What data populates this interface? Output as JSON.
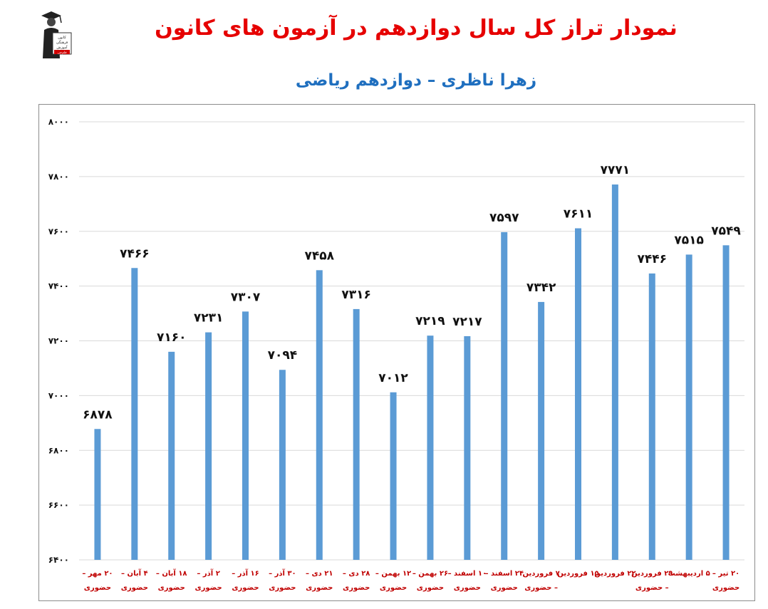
{
  "header": {
    "title": "نمودار تراز کل سال دوازدهم در آزمون های کانون",
    "subtitle": "زهرا ناظری – دوازدهم ریاضی"
  },
  "logo": {
    "icon": "graduate-figure-icon",
    "text_lines": [
      "کانون",
      "فرهنگی",
      "آموزش",
      "قلم‌چی"
    ]
  },
  "colors": {
    "title": "#e60000",
    "subtitle": "#1f6fbf",
    "bar": "#5b9bd5",
    "category_label": "#c00000",
    "grid": "#d9d9d9"
  },
  "chart_data": {
    "type": "bar",
    "categories": [
      [
        "۲۰ مهر –",
        "حضوری"
      ],
      [
        "۴ آبان –",
        "حضوری"
      ],
      [
        "۱۸ آبان –",
        "حضوری"
      ],
      [
        "۲ آذر –",
        "حضوری"
      ],
      [
        "۱۶ آذر –",
        "حضوری"
      ],
      [
        "۳۰ آذر –",
        "حضوری"
      ],
      [
        "۲۱ دی –",
        "حضوری"
      ],
      [
        "۲۸ دی –",
        "حضوری"
      ],
      [
        "۱۲ بهمن –",
        "حضوری"
      ],
      [
        "۲۶ بهمن –",
        "حضوری"
      ],
      [
        "۱۰ اسفند –",
        "حضوری"
      ],
      [
        "۲۴ اسفند –",
        "حضوری"
      ],
      [
        "۷ فروردین",
        "– حضوری"
      ],
      [
        "۱۵ فروردین",
        ""
      ],
      [
        "۲۲ فروردین",
        ""
      ],
      [
        "۲۹ فروردین",
        "– حضوری"
      ],
      [
        "۵ اردیبهشت",
        ""
      ],
      [
        "۲۰ تیر –",
        "حضوری"
      ]
    ],
    "values": [
      6878,
      7466,
      7160,
      7231,
      7307,
      7094,
      7458,
      7316,
      7012,
      7219,
      7217,
      7597,
      7342,
      7611,
      7771,
      7446,
      7515,
      7549
    ],
    "value_labels": [
      "۶۸۷۸",
      "۷۴۶۶",
      "۷۱۶۰",
      "۷۲۳۱",
      "۷۳۰۷",
      "۷۰۹۴",
      "۷۴۵۸",
      "۷۳۱۶",
      "۷۰۱۲",
      "۷۲۱۹",
      "۷۲۱۷",
      "۷۵۹۷",
      "۷۳۴۲",
      "۷۶۱۱",
      "۷۷۷۱",
      "۷۴۴۶",
      "۷۵۱۵",
      "۷۵۴۹"
    ],
    "y_ticks": [
      6400,
      6600,
      6800,
      7000,
      7200,
      7400,
      7600,
      7800,
      8000
    ],
    "y_tick_labels": [
      "۶۴۰۰",
      "۶۶۰۰",
      "۶۸۰۰",
      "۷۰۰۰",
      "۷۲۰۰",
      "۷۴۰۰",
      "۷۶۰۰",
      "۷۸۰۰",
      "۸۰۰۰"
    ],
    "ylim": [
      6400,
      8000
    ],
    "grid": true,
    "legend": "none"
  }
}
